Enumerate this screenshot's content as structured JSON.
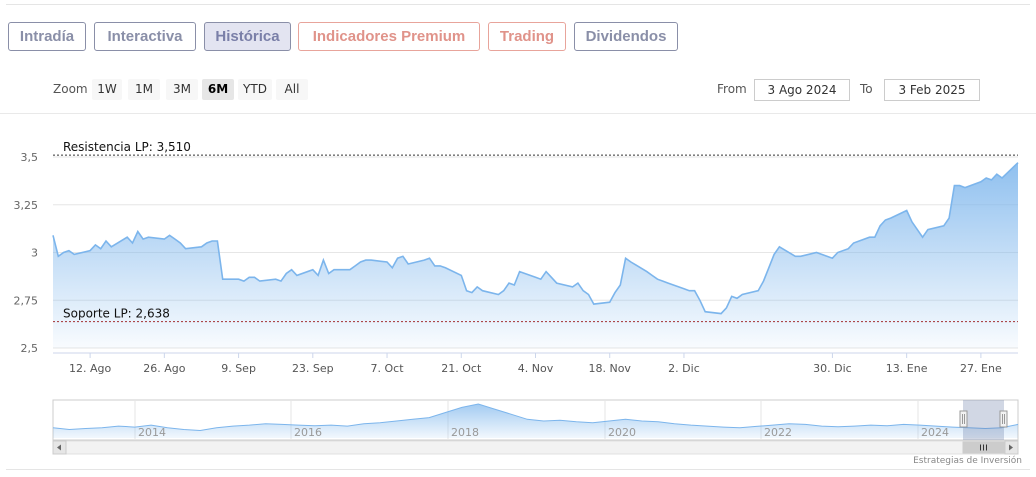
{
  "tabs": [
    {
      "label": "Intradía",
      "style": "muted"
    },
    {
      "label": "Interactiva",
      "style": "muted"
    },
    {
      "label": "Histórica",
      "style": "active"
    },
    {
      "label": "Indicadores Premium",
      "style": "red"
    },
    {
      "label": "Trading",
      "style": "red"
    },
    {
      "label": "Dividendos",
      "style": "muted"
    }
  ],
  "range_selector": {
    "zoom_label": "Zoom",
    "buttons": [
      "1W",
      "1M",
      "3M",
      "6M",
      "YTD",
      "All"
    ],
    "selected": "6M",
    "from_label": "From",
    "from_value": "3 Ago 2024",
    "to_label": "To",
    "to_value": "3 Feb 2025"
  },
  "credits": "Estrategias de Inversión",
  "colors": {
    "line": "#7cb5ec",
    "support": "#a33030",
    "resistance": "#333333"
  },
  "chart_data": {
    "type": "area",
    "ylim": [
      2.5,
      3.5
    ],
    "y_ticks": [
      "3,5",
      "3,25",
      "3",
      "2,75",
      "2,5"
    ],
    "y_tick_values": [
      3.5,
      3.25,
      3.0,
      2.75,
      2.5
    ],
    "x_ticks": [
      "12. Ago",
      "26. Ago",
      "9. Sep",
      "23. Sep",
      "7. Oct",
      "21. Oct",
      "4. Nov",
      "18. Nov",
      "2. Dic",
      "30. Dic",
      "13. Ene",
      "27. Ene"
    ],
    "x_tick_dates": [
      "2024-08-12",
      "2024-08-26",
      "2024-09-09",
      "2024-09-23",
      "2024-10-07",
      "2024-10-21",
      "2024-11-04",
      "2024-11-18",
      "2024-12-02",
      "2024-12-30",
      "2025-01-13",
      "2025-01-27"
    ],
    "x_range": [
      "2024-08-05",
      "2025-02-03"
    ],
    "annotations": [
      {
        "label": "Resistencia LP: 3,510",
        "value": 3.51,
        "style": "dashed"
      },
      {
        "label": "Soporte LP: 2,638",
        "value": 2.638,
        "style": "dashed"
      }
    ],
    "series": [
      {
        "x": [
          "2024-08-05",
          "2024-08-06",
          "2024-08-07",
          "2024-08-08",
          "2024-08-09",
          "2024-08-12",
          "2024-08-13",
          "2024-08-14",
          "2024-08-15",
          "2024-08-16",
          "2024-08-19",
          "2024-08-20",
          "2024-08-21",
          "2024-08-22",
          "2024-08-23",
          "2024-08-26",
          "2024-08-27",
          "2024-08-28",
          "2024-08-29",
          "2024-08-30",
          "2024-09-02",
          "2024-09-03",
          "2024-09-04",
          "2024-09-05",
          "2024-09-06",
          "2024-09-09",
          "2024-09-10",
          "2024-09-11",
          "2024-09-12",
          "2024-09-13",
          "2024-09-16",
          "2024-09-17",
          "2024-09-18",
          "2024-09-19",
          "2024-09-20",
          "2024-09-23",
          "2024-09-24",
          "2024-09-25",
          "2024-09-26",
          "2024-09-27",
          "2024-09-30",
          "2024-10-01",
          "2024-10-02",
          "2024-10-03",
          "2024-10-04",
          "2024-10-07",
          "2024-10-08",
          "2024-10-09",
          "2024-10-10",
          "2024-10-11",
          "2024-10-14",
          "2024-10-15",
          "2024-10-16",
          "2024-10-17",
          "2024-10-18",
          "2024-10-21",
          "2024-10-22",
          "2024-10-23",
          "2024-10-24",
          "2024-10-25",
          "2024-10-28",
          "2024-10-29",
          "2024-10-30",
          "2024-10-31",
          "2024-11-01",
          "2024-11-04",
          "2024-11-05",
          "2024-11-06",
          "2024-11-07",
          "2024-11-08",
          "2024-11-11",
          "2024-11-12",
          "2024-11-13",
          "2024-11-14",
          "2024-11-15",
          "2024-11-18",
          "2024-11-19",
          "2024-11-20",
          "2024-11-21",
          "2024-11-22",
          "2024-11-25",
          "2024-11-26",
          "2024-11-27",
          "2024-11-28",
          "2024-11-29",
          "2024-12-02",
          "2024-12-03",
          "2024-12-04",
          "2024-12-05",
          "2024-12-06",
          "2024-12-09",
          "2024-12-10",
          "2024-12-11",
          "2024-12-12",
          "2024-12-13",
          "2024-12-16",
          "2024-12-17",
          "2024-12-18",
          "2024-12-19",
          "2024-12-20",
          "2024-12-23",
          "2024-12-24",
          "2024-12-27",
          "2024-12-30",
          "2024-12-31",
          "2025-01-02",
          "2025-01-03",
          "2025-01-06",
          "2025-01-07",
          "2025-01-08",
          "2025-01-09",
          "2025-01-10",
          "2025-01-13",
          "2025-01-14",
          "2025-01-15",
          "2025-01-16",
          "2025-01-17",
          "2025-01-20",
          "2025-01-21",
          "2025-01-22",
          "2025-01-23",
          "2025-01-24",
          "2025-01-27",
          "2025-01-28",
          "2025-01-29",
          "2025-01-30",
          "2025-01-31",
          "2025-02-03"
        ],
        "values": [
          3.09,
          2.98,
          3.0,
          3.01,
          2.99,
          3.01,
          3.04,
          3.02,
          3.06,
          3.03,
          3.08,
          3.05,
          3.11,
          3.07,
          3.08,
          3.07,
          3.09,
          3.07,
          3.05,
          3.02,
          3.03,
          3.05,
          3.06,
          3.06,
          2.86,
          2.86,
          2.85,
          2.87,
          2.87,
          2.85,
          2.86,
          2.85,
          2.89,
          2.91,
          2.88,
          2.91,
          2.88,
          2.96,
          2.89,
          2.91,
          2.91,
          2.93,
          2.95,
          2.96,
          2.96,
          2.95,
          2.92,
          2.97,
          2.98,
          2.94,
          2.96,
          2.97,
          2.93,
          2.93,
          2.92,
          2.88,
          2.8,
          2.79,
          2.82,
          2.8,
          2.78,
          2.8,
          2.84,
          2.83,
          2.9,
          2.87,
          2.86,
          2.9,
          2.87,
          2.84,
          2.82,
          2.84,
          2.8,
          2.78,
          2.73,
          2.74,
          2.79,
          2.83,
          2.97,
          2.95,
          2.9,
          2.88,
          2.86,
          2.85,
          2.84,
          2.81,
          2.8,
          2.8,
          2.75,
          2.69,
          2.68,
          2.71,
          2.77,
          2.76,
          2.78,
          2.8,
          2.85,
          2.92,
          2.99,
          3.03,
          2.98,
          2.98,
          3.0,
          2.97,
          3.0,
          3.02,
          3.05,
          3.08,
          3.08,
          3.14,
          3.17,
          3.18,
          3.22,
          3.16,
          3.12,
          3.08,
          3.12,
          3.14,
          3.18,
          3.35,
          3.35,
          3.34,
          3.37,
          3.39,
          3.38,
          3.41,
          3.39,
          3.47
        ]
      }
    ],
    "navigator": {
      "x_ticks": [
        "2014",
        "2016",
        "2018",
        "2020",
        "2022",
        "2024"
      ],
      "values": [
        0.3,
        0.25,
        0.28,
        0.3,
        0.35,
        0.32,
        0.38,
        0.3,
        0.25,
        0.22,
        0.3,
        0.35,
        0.38,
        0.42,
        0.4,
        0.38,
        0.36,
        0.38,
        0.35,
        0.42,
        0.45,
        0.5,
        0.55,
        0.6,
        0.75,
        0.9,
        1.0,
        0.85,
        0.7,
        0.55,
        0.5,
        0.52,
        0.48,
        0.45,
        0.5,
        0.55,
        0.5,
        0.48,
        0.42,
        0.38,
        0.35,
        0.32,
        0.3,
        0.34,
        0.38,
        0.42,
        0.4,
        0.35,
        0.33,
        0.35,
        0.38,
        0.36,
        0.4,
        0.38,
        0.35,
        0.32,
        0.3,
        0.28,
        0.3,
        0.4
      ]
    }
  }
}
